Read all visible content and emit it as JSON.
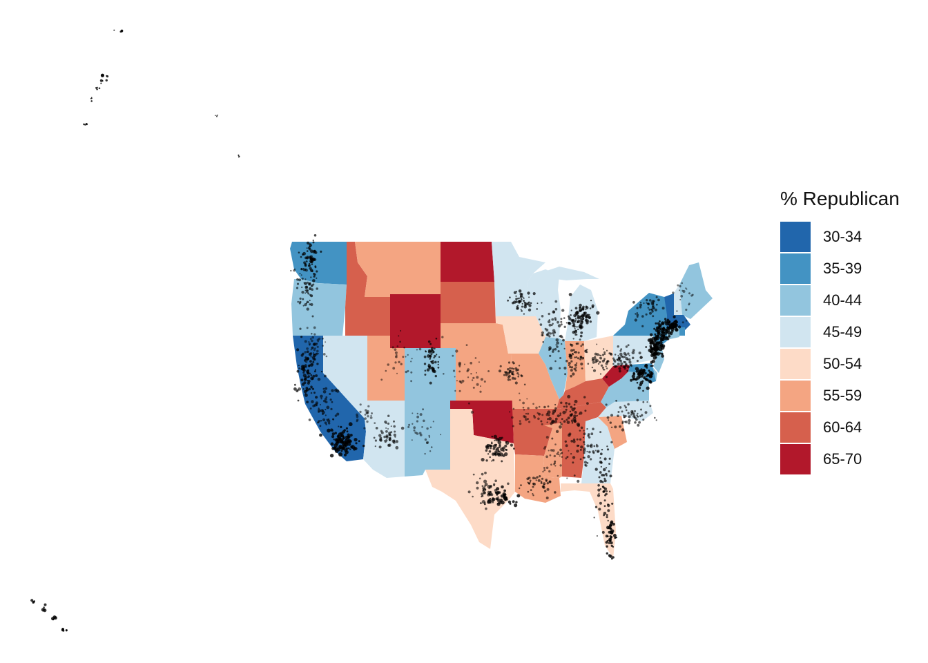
{
  "legend": {
    "title": "% Republican",
    "items": [
      {
        "label": "30-34",
        "color": "#2166ac"
      },
      {
        "label": "35-39",
        "color": "#4393c3"
      },
      {
        "label": "40-44",
        "color": "#92c5de"
      },
      {
        "label": "45-49",
        "color": "#d1e5f0"
      },
      {
        "label": "50-54",
        "color": "#fddbc7"
      },
      {
        "label": "55-59",
        "color": "#f4a582"
      },
      {
        "label": "60-64",
        "color": "#d6604d"
      },
      {
        "label": "65-70",
        "color": "#b2182b"
      }
    ]
  },
  "colors": {
    "background": "#ffffff",
    "city_points": "#000000"
  },
  "states": [
    {
      "id": "WA",
      "bin": "35-39"
    },
    {
      "id": "OR",
      "bin": "40-44"
    },
    {
      "id": "CA",
      "bin": "30-34"
    },
    {
      "id": "NV",
      "bin": "45-49"
    },
    {
      "id": "ID",
      "bin": "60-64"
    },
    {
      "id": "MT",
      "bin": "55-59"
    },
    {
      "id": "WY",
      "bin": "65-70"
    },
    {
      "id": "UT",
      "bin": "55-59"
    },
    {
      "id": "AZ",
      "bin": "45-49"
    },
    {
      "id": "CO",
      "bin": "40-44"
    },
    {
      "id": "NM",
      "bin": "40-44"
    },
    {
      "id": "ND",
      "bin": "65-70"
    },
    {
      "id": "SD",
      "bin": "60-64"
    },
    {
      "id": "NE",
      "bin": "55-59"
    },
    {
      "id": "KS",
      "bin": "55-59"
    },
    {
      "id": "OK",
      "bin": "65-70"
    },
    {
      "id": "TX",
      "bin": "50-54"
    },
    {
      "id": "MN",
      "bin": "45-49"
    },
    {
      "id": "IA",
      "bin": "50-54"
    },
    {
      "id": "MO",
      "bin": "55-59"
    },
    {
      "id": "AR",
      "bin": "60-64"
    },
    {
      "id": "LA",
      "bin": "55-59"
    },
    {
      "id": "WI",
      "bin": "45-49"
    },
    {
      "id": "IL",
      "bin": "40-44"
    },
    {
      "id": "MI",
      "bin": "45-49"
    },
    {
      "id": "IN",
      "bin": "55-59"
    },
    {
      "id": "OH",
      "bin": "50-54"
    },
    {
      "id": "KY",
      "bin": "60-64"
    },
    {
      "id": "TN",
      "bin": "60-64"
    },
    {
      "id": "MS",
      "bin": "55-59"
    },
    {
      "id": "AL",
      "bin": "60-64"
    },
    {
      "id": "GA",
      "bin": "45-49"
    },
    {
      "id": "FL",
      "bin": "50-54"
    },
    {
      "id": "SC",
      "bin": "55-59"
    },
    {
      "id": "NC",
      "bin": "45-49"
    },
    {
      "id": "VA",
      "bin": "40-44"
    },
    {
      "id": "WV",
      "bin": "65-70"
    },
    {
      "id": "PA",
      "bin": "45-49"
    },
    {
      "id": "NY",
      "bin": "35-39"
    },
    {
      "id": "VT",
      "bin": "30-34"
    },
    {
      "id": "NH",
      "bin": "45-49"
    },
    {
      "id": "ME",
      "bin": "40-44"
    },
    {
      "id": "MA",
      "bin": "30-34"
    },
    {
      "id": "RI",
      "bin": "35-39"
    },
    {
      "id": "CT",
      "bin": "40-44"
    },
    {
      "id": "NJ",
      "bin": "40-44"
    },
    {
      "id": "DE",
      "bin": "40-44"
    },
    {
      "id": "MD",
      "bin": "35-39"
    }
  ]
}
